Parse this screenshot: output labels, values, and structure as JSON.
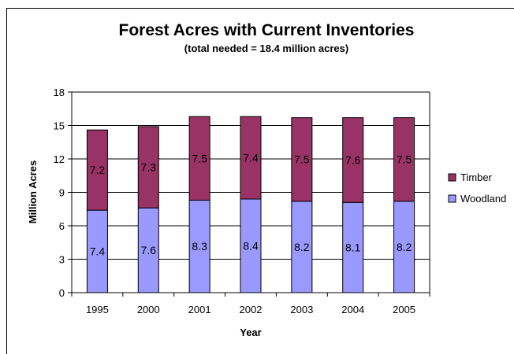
{
  "chart_data": {
    "type": "bar",
    "stacked": true,
    "title": "Forest Acres with Current Inventories",
    "subtitle": "(total needed = 18.4 million acres)",
    "xlabel": "Year",
    "ylabel": "Million Acres",
    "ylim": [
      0,
      18
    ],
    "yticks": [
      0,
      3,
      6,
      9,
      12,
      15,
      18
    ],
    "grid": true,
    "legend_position": "right",
    "categories": [
      "1995",
      "2000",
      "2001",
      "2002",
      "2003",
      "2004",
      "2005"
    ],
    "series": [
      {
        "name": "Woodland",
        "values": [
          7.4,
          7.6,
          8.3,
          8.4,
          8.2,
          8.1,
          8.2
        ],
        "color": "#9999ff"
      },
      {
        "name": "Timber",
        "values": [
          7.2,
          7.3,
          7.5,
          7.4,
          7.5,
          7.6,
          7.5
        ],
        "color": "#993366"
      }
    ],
    "legend_order": [
      "Timber",
      "Woodland"
    ]
  }
}
